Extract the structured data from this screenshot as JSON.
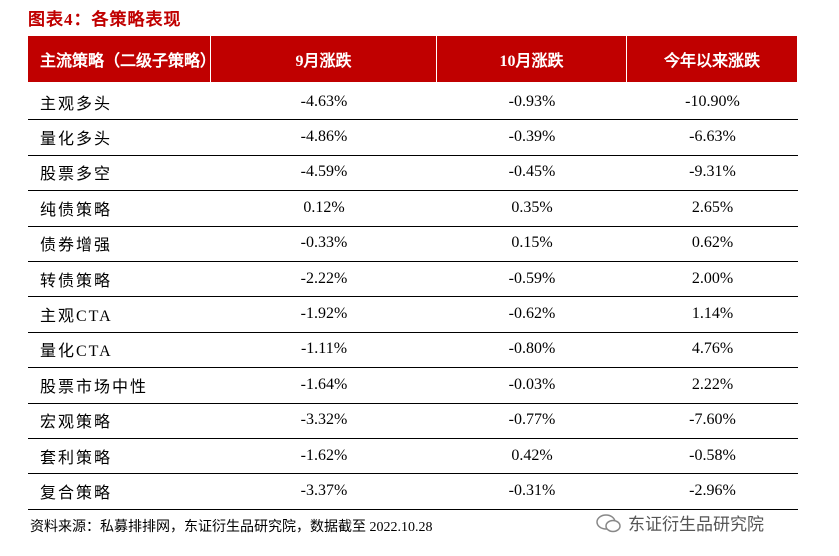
{
  "title": "图表4：各策略表现",
  "table": {
    "header": [
      "主流策略（二级子策略）",
      "9月涨跌",
      "10月涨跌",
      "今年以来涨跌"
    ],
    "rows": [
      [
        "主观多头",
        "-4.63%",
        "-0.93%",
        "-10.90%"
      ],
      [
        "量化多头",
        "-4.86%",
        "-0.39%",
        "-6.63%"
      ],
      [
        "股票多空",
        "-4.59%",
        "-0.45%",
        "-9.31%"
      ],
      [
        "纯债策略",
        "0.12%",
        "0.35%",
        "2.65%"
      ],
      [
        "债券增强",
        "-0.33%",
        "0.15%",
        "0.62%"
      ],
      [
        "转债策略",
        "-2.22%",
        "-0.59%",
        "2.00%"
      ],
      [
        "主观CTA",
        "-1.92%",
        "-0.62%",
        "1.14%"
      ],
      [
        "量化CTA",
        "-1.11%",
        "-0.80%",
        "4.76%"
      ],
      [
        "股票市场中性",
        "-1.64%",
        "-0.03%",
        "2.22%"
      ],
      [
        "宏观策略",
        "-3.32%",
        "-0.77%",
        "-7.60%"
      ],
      [
        "套利策略",
        "-1.62%",
        "0.42%",
        "-0.58%"
      ],
      [
        "复合策略",
        "-3.37%",
        "-0.31%",
        "-2.96%"
      ]
    ]
  },
  "source": "资料来源：私募排排网，东证衍生品研究院，数据截至 2022.10.28",
  "watermark": "东证衍生品研究院"
}
